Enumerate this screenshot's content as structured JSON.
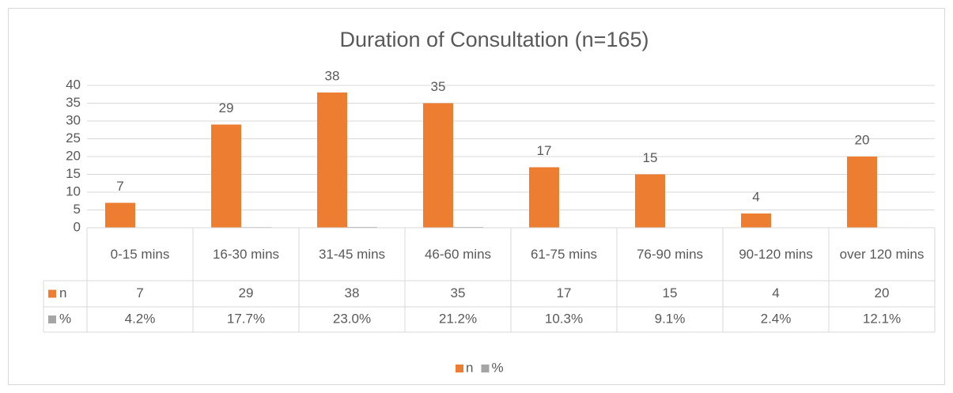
{
  "chart_data": {
    "type": "bar",
    "title": "Duration of Consultation (n=165)",
    "categories": [
      "0-15 mins",
      "16-30 mins",
      "31-45 mins",
      "46-60 mins",
      "61-75 mins",
      "76-90 mins",
      "90-120 mins",
      "over 120 mins"
    ],
    "series": [
      {
        "name": "n",
        "color": "#ed7d31",
        "values": [
          7,
          29,
          38,
          35,
          17,
          15,
          4,
          20
        ]
      },
      {
        "name": "%",
        "color": "#a5a5a5",
        "values": [
          0.042,
          0.177,
          0.23,
          0.212,
          0.103,
          0.091,
          0.024,
          0.121
        ],
        "value_labels": [
          "4.2%",
          "17.7%",
          "23.0%",
          "21.2%",
          "10.3%",
          "9.1%",
          "2.4%",
          "12.1%"
        ]
      }
    ],
    "ylim": [
      0,
      40
    ],
    "yticks": [
      0,
      5,
      10,
      15,
      20,
      25,
      30,
      35,
      40
    ],
    "grid": true,
    "legend": "bottom"
  }
}
